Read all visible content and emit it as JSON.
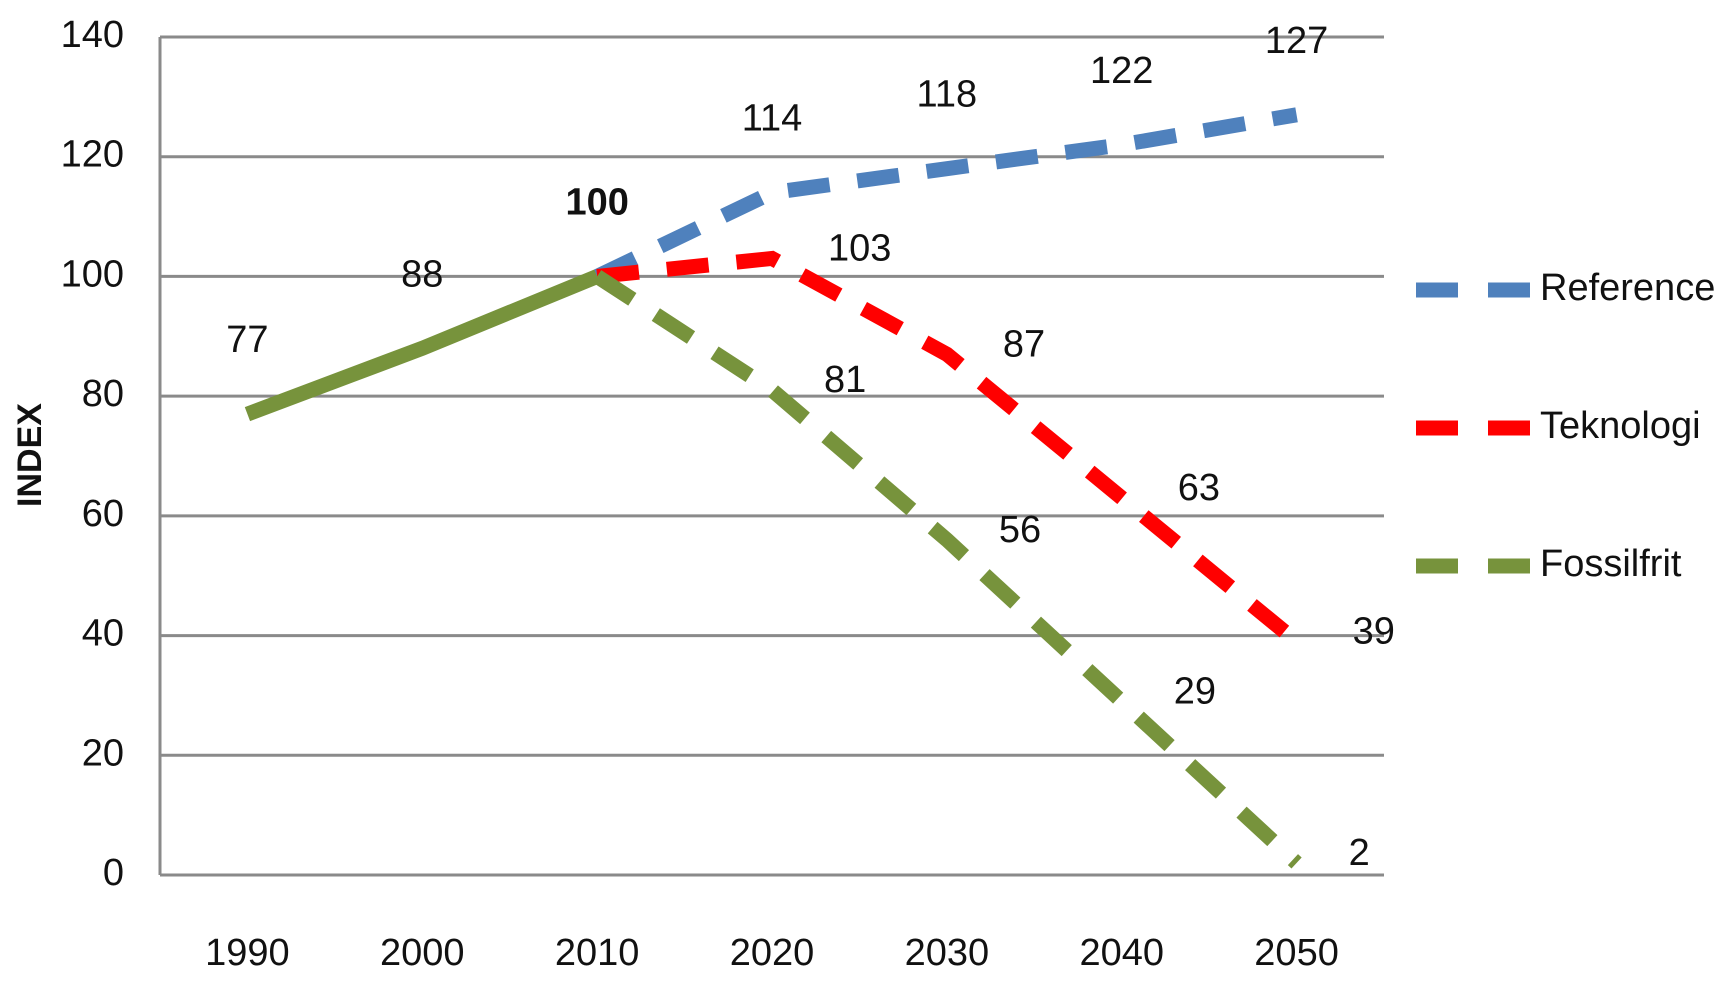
{
  "chart_data": {
    "type": "line",
    "y_axis_label": "INDEX",
    "categories": [
      "1990",
      "2000",
      "2010",
      "2020",
      "2030",
      "2040",
      "2050"
    ],
    "series": [
      {
        "name": "Reference",
        "color": "#4f81bd",
        "values": [
          null,
          null,
          100,
          114,
          118,
          122,
          127
        ]
      },
      {
        "name": "Teknologi",
        "color": "#ff0000",
        "values": [
          null,
          null,
          100,
          103,
          87,
          63,
          39
        ]
      },
      {
        "name": "Fossilfrit",
        "color": "#77933c",
        "values": [
          77,
          88,
          100,
          81,
          56,
          29,
          2
        ],
        "solid_through": "2010"
      }
    ],
    "ylim": [
      0,
      140
    ],
    "yticks": [
      0,
      20,
      40,
      60,
      80,
      100,
      120,
      140
    ],
    "grid": true,
    "legend": "right",
    "line_style": "dashed"
  }
}
